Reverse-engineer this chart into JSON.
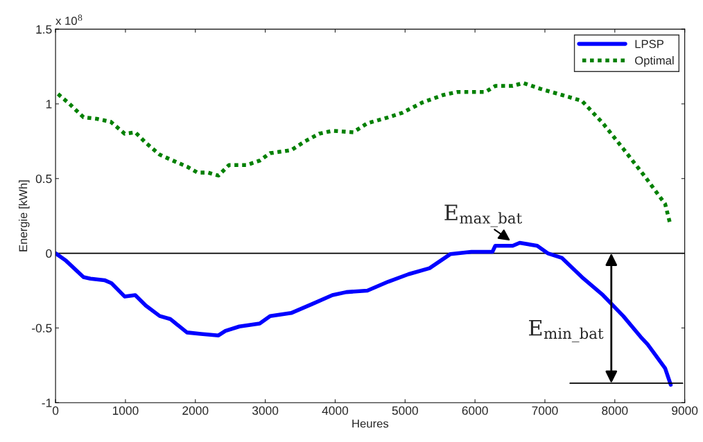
{
  "chart_data": {
    "type": "line",
    "xlabel": "Heures",
    "ylabel": "Energie [kWh]",
    "xlim": [
      0,
      9000
    ],
    "xticks": [
      0,
      1000,
      2000,
      3000,
      4000,
      5000,
      6000,
      7000,
      8000,
      9000
    ],
    "ylim": [
      -1,
      1.5
    ],
    "yticks": [
      -1,
      -0.5,
      0,
      0.5,
      1,
      1.5
    ],
    "grid": false,
    "legend": "top right",
    "series": [
      {
        "name": "LPSP",
        "color": "#0000ff",
        "line_style": "solid",
        "x": [
          0,
          150,
          400,
          500,
          700,
          800,
          990,
          1140,
          1290,
          1490,
          1640,
          1880,
          2080,
          2330,
          2430,
          2630,
          2920,
          3070,
          3370,
          3670,
          3960,
          4160,
          4460,
          4760,
          5050,
          5350,
          5650,
          5950,
          6250,
          6290,
          6540,
          6640,
          6890,
          7040,
          7240,
          7530,
          7830,
          8120,
          8370,
          8470,
          8720,
          8800
        ],
        "values": [
          0,
          -0.05,
          -0.16,
          -0.17,
          -0.18,
          -0.2,
          -0.29,
          -0.28,
          -0.35,
          -0.42,
          -0.44,
          -0.53,
          -0.54,
          -0.55,
          -0.52,
          -0.49,
          -0.47,
          -0.42,
          -0.4,
          -0.34,
          -0.28,
          -0.26,
          -0.25,
          -0.19,
          -0.14,
          -0.1,
          -0.005,
          0.01,
          0.01,
          0.05,
          0.05,
          0.07,
          0.05,
          0,
          -0.03,
          -0.16,
          -0.28,
          -0.42,
          -0.56,
          -0.61,
          -0.77,
          -0.88
        ]
      },
      {
        "name": "Optimal",
        "color": "#008000",
        "line_style": "dotted",
        "x": [
          0,
          200,
          400,
          590,
          790,
          990,
          1140,
          1290,
          1490,
          1680,
          1880,
          2030,
          2180,
          2330,
          2480,
          2730,
          2920,
          3070,
          3370,
          3570,
          3770,
          3960,
          4260,
          4460,
          4760,
          4960,
          5250,
          5550,
          5750,
          6150,
          6290,
          6540,
          6690,
          6940,
          7240,
          7530,
          7830,
          8120,
          8420,
          8720,
          8790
        ],
        "values": [
          1.08,
          1.0,
          0.91,
          0.9,
          0.88,
          0.8,
          0.81,
          0.74,
          0.66,
          0.62,
          0.58,
          0.54,
          0.54,
          0.52,
          0.59,
          0.59,
          0.62,
          0.67,
          0.69,
          0.75,
          0.8,
          0.82,
          0.81,
          0.87,
          0.91,
          0.94,
          1.01,
          1.06,
          1.08,
          1.08,
          1.12,
          1.12,
          1.14,
          1.1,
          1.06,
          1.02,
          0.87,
          0.7,
          0.52,
          0.33,
          0.2
        ]
      },
      {
        "color": "#000000",
        "line_style": "solid",
        "x": [
          7360,
          8970
        ],
        "values": [
          -0.87,
          -0.87
        ]
      }
    ],
    "ref_lines": [
      {
        "axis": "y",
        "value": 0,
        "color": "#000000",
        "line_style": "solid"
      }
    ],
    "annotations": [
      "x 10$^{8}$",
      {
        "text": "E$_{max_bat}$",
        "x": 6550,
        "y": 0.07
      },
      {
        "text": "E$_{min_bat}$",
        "x": 7950,
        "y": -0.87
      }
    ]
  }
}
